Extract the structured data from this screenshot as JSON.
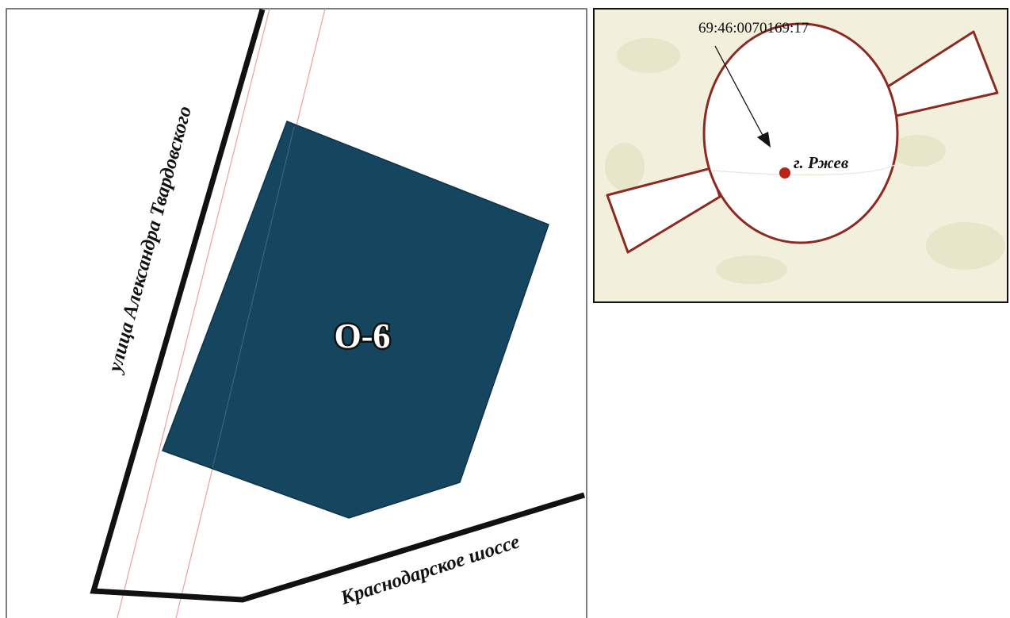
{
  "main_map": {
    "street_vertical": "улица Александра Твардовского",
    "street_bottom": "Краснодарское шоссе",
    "zone_label": "О-6",
    "colors": {
      "zone_fill": "#164560",
      "road_line": "#111111",
      "boundary_line": "#e8a0a0",
      "background": "#ffffff"
    }
  },
  "inset_map": {
    "cadastral_number": "69:46:0070169:17",
    "city_label": "г. Ржев",
    "colors": {
      "outline": "#8b2a20",
      "city_dot": "#b8231a",
      "background": "#f2f0dc",
      "circle_fill": "#ffffff"
    }
  }
}
